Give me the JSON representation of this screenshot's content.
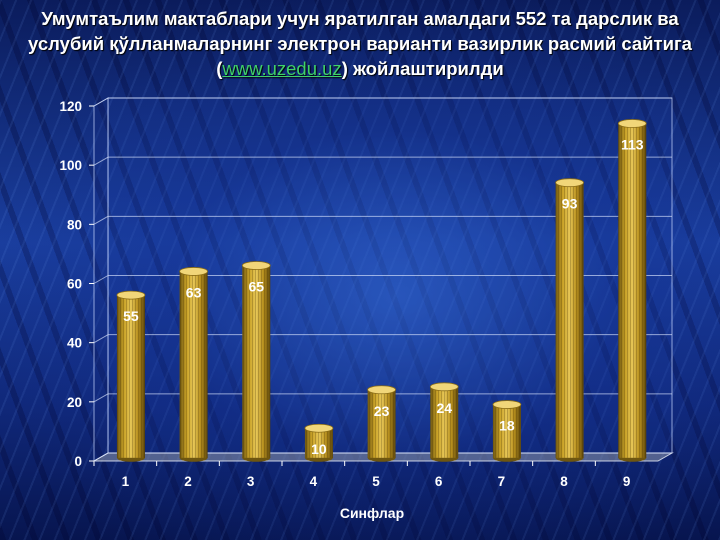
{
  "title": {
    "before": "Умумтаълим мактаблари учун яратилган амалдаги 552 та дарслик ва услубий қўлланмаларнинг электрон варианти вазирлик расмий сайтига (",
    "link": "www.uzedu.uz",
    "after": ") жойлаштирилди"
  },
  "chart_data": {
    "type": "bar",
    "style": "3d-cylinder",
    "categories": [
      "1",
      "2",
      "3",
      "4",
      "5",
      "6",
      "7",
      "8",
      "9"
    ],
    "values": [
      55,
      63,
      65,
      10,
      23,
      24,
      18,
      93,
      113
    ],
    "data_labels": [
      "55",
      "63",
      "65",
      "10",
      "23",
      "24",
      "18",
      "93",
      "113"
    ],
    "xlabel": "Синфлар",
    "ylabel": "",
    "ylim": [
      0,
      120
    ],
    "yticks": [
      0,
      20,
      40,
      60,
      80,
      100,
      120
    ],
    "grid": true,
    "legend": "none",
    "bar_color": "#c9a227"
  }
}
